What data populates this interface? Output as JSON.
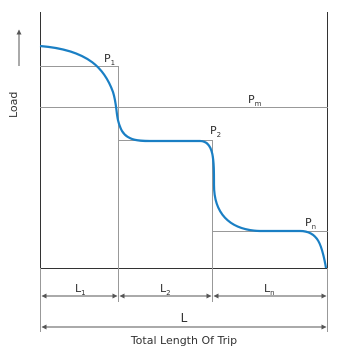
{
  "diagram": {
    "y_axis_label": "Load",
    "x_axis_title": "Total Length Of Trip",
    "total_length_label": "L",
    "mean_load": {
      "base": "P",
      "sub": "m"
    },
    "loads": [
      {
        "base": "P",
        "sub": "1"
      },
      {
        "base": "P",
        "sub": "2"
      },
      {
        "base": "P",
        "sub": "n"
      }
    ],
    "segments": [
      {
        "base": "L",
        "sub": "1"
      },
      {
        "base": "L",
        "sub": "2"
      },
      {
        "base": "L",
        "sub": "n"
      }
    ],
    "colors": {
      "curve": "#1a7fc4",
      "line": "#999999",
      "axis": "#333333",
      "text": "#333333"
    }
  }
}
